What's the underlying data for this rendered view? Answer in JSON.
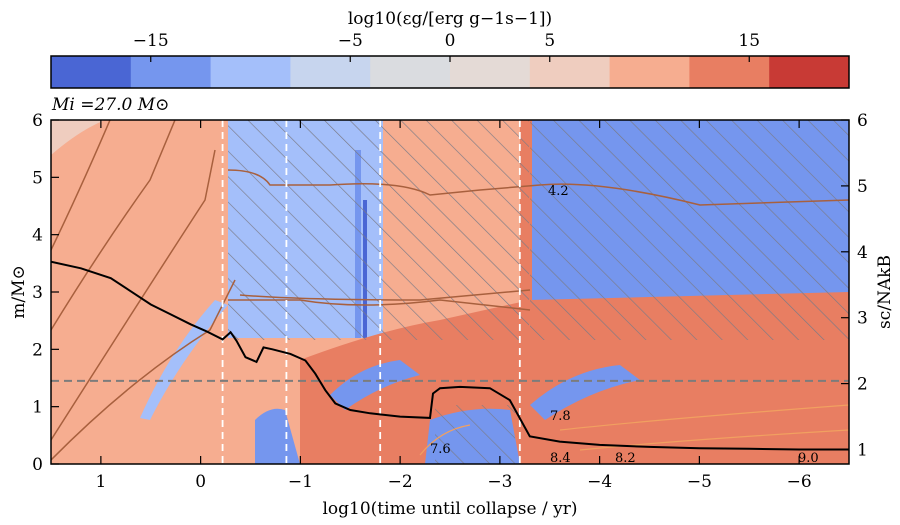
{
  "chart_data": {
    "type": "heatmap",
    "title": "",
    "annotation": "Mi =27.0 M⊙",
    "colorbar": {
      "label": "log10(εg/[erg g−1s−1])",
      "ticks": [
        "−15",
        "−5",
        "0",
        "5",
        "15"
      ],
      "tick_values": [
        -15,
        -5,
        0,
        5,
        15
      ],
      "range": [
        -20,
        20
      ],
      "bins": 10,
      "colors": [
        "#4a66d4",
        "#7596ee",
        "#a4bffa",
        "#c7d5ee",
        "#dadce0",
        "#e4dad6",
        "#efcdbf",
        "#f6ad90",
        "#e87e62",
        "#c83a35"
      ]
    },
    "xlabel": "log10(time until collapse / yr)",
    "ylabel_left": "m/M⊙",
    "ylabel_right": "sc/NAkB",
    "xlim": [
      1.5,
      -6.5
    ],
    "ylim_left": [
      0,
      6
    ],
    "ylim_right": [
      0.78,
      6
    ],
    "xticks": [
      "1",
      "0",
      "−1",
      "−2",
      "−3",
      "−4",
      "−5",
      "−6"
    ],
    "xtick_values": [
      1,
      0,
      -1,
      -2,
      -3,
      -4,
      -5,
      -6
    ],
    "yticks_left": [
      "0",
      "1",
      "2",
      "3",
      "4",
      "5",
      "6"
    ],
    "ytick_values_left": [
      0,
      1,
      2,
      3,
      4,
      5,
      6
    ],
    "yticks_right": [
      "1",
      "2",
      "3",
      "4",
      "5",
      "6"
    ],
    "ytick_values_right": [
      1,
      2,
      3,
      4,
      5,
      6
    ],
    "vertical_dashed_lines_x": [
      -0.22,
      -0.86,
      -1.8,
      -3.2
    ],
    "horizontal_dashed_line_m": 1.45,
    "central_entropy_curve": {
      "x": [
        1.5,
        1.2,
        0.9,
        0.7,
        0.5,
        0.3,
        0.1,
        -0.05,
        -0.22,
        -0.3,
        -0.36,
        -0.45,
        -0.56,
        -0.63,
        -0.72,
        -0.9,
        -1.05,
        -1.15,
        -1.25,
        -1.35,
        -1.5,
        -1.7,
        -2.0,
        -2.3,
        -2.33,
        -2.4,
        -2.6,
        -2.9,
        -3.1,
        -3.3,
        -3.6,
        -4.0,
        -4.5,
        -5.0,
        -5.5,
        -6.0,
        -6.5
      ],
      "s": [
        3.85,
        3.75,
        3.6,
        3.4,
        3.2,
        3.05,
        2.9,
        2.8,
        2.67,
        2.78,
        2.65,
        2.4,
        2.33,
        2.55,
        2.52,
        2.45,
        2.35,
        2.15,
        1.9,
        1.7,
        1.6,
        1.55,
        1.5,
        1.48,
        1.85,
        1.93,
        1.95,
        1.93,
        1.75,
        1.2,
        1.12,
        1.07,
        1.04,
        1.02,
        1.01,
        1.0,
        1.0
      ]
    },
    "contour_labels": [
      "4.2",
      "7.8",
      "7.6",
      "8.4",
      "9.0",
      "8.2"
    ]
  }
}
